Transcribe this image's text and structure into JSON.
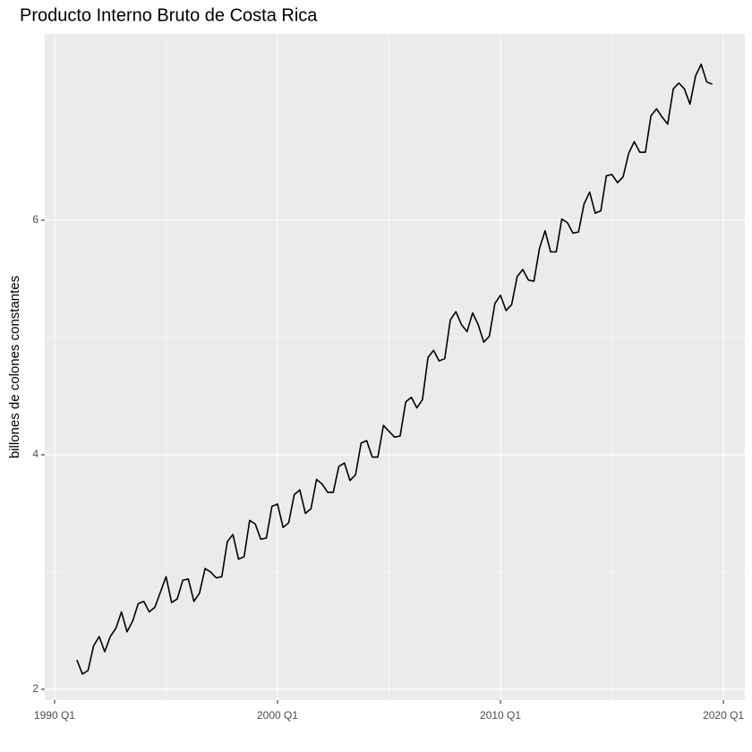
{
  "chart_data": {
    "type": "line",
    "title": "Producto Interno Bruto de Costa Rica",
    "y_label": "billones de colones constantes",
    "x": [
      "1991 Q1",
      "1991 Q2",
      "1991 Q3",
      "1991 Q4",
      "1992 Q1",
      "1992 Q2",
      "1992 Q3",
      "1992 Q4",
      "1993 Q1",
      "1993 Q2",
      "1993 Q3",
      "1993 Q4",
      "1994 Q1",
      "1994 Q2",
      "1994 Q3",
      "1994 Q4",
      "1995 Q1",
      "1995 Q2",
      "1995 Q3",
      "1995 Q4",
      "1996 Q1",
      "1996 Q2",
      "1996 Q3",
      "1996 Q4",
      "1997 Q1",
      "1997 Q2",
      "1997 Q3",
      "1997 Q4",
      "1998 Q1",
      "1998 Q2",
      "1998 Q3",
      "1998 Q4",
      "1999 Q1",
      "1999 Q2",
      "1999 Q3",
      "1999 Q4",
      "2000 Q1",
      "2000 Q2",
      "2000 Q3",
      "2000 Q4",
      "2001 Q1",
      "2001 Q2",
      "2001 Q3",
      "2001 Q4",
      "2002 Q1",
      "2002 Q2",
      "2002 Q3",
      "2002 Q4",
      "2003 Q1",
      "2003 Q2",
      "2003 Q3",
      "2003 Q4",
      "2004 Q1",
      "2004 Q2",
      "2004 Q3",
      "2004 Q4",
      "2005 Q1",
      "2005 Q2",
      "2005 Q3",
      "2005 Q4",
      "2006 Q1",
      "2006 Q2",
      "2006 Q3",
      "2006 Q4",
      "2007 Q1",
      "2007 Q2",
      "2007 Q3",
      "2007 Q4",
      "2008 Q1",
      "2008 Q2",
      "2008 Q3",
      "2008 Q4",
      "2009 Q1",
      "2009 Q2",
      "2009 Q3",
      "2009 Q4",
      "2010 Q1",
      "2010 Q2",
      "2010 Q3",
      "2010 Q4",
      "2011 Q1",
      "2011 Q2",
      "2011 Q3",
      "2011 Q4",
      "2012 Q1",
      "2012 Q2",
      "2012 Q3",
      "2012 Q4",
      "2013 Q1",
      "2013 Q2",
      "2013 Q3",
      "2013 Q4",
      "2014 Q1",
      "2014 Q2",
      "2014 Q3",
      "2014 Q4",
      "2015 Q1",
      "2015 Q2",
      "2015 Q3",
      "2015 Q4",
      "2016 Q1",
      "2016 Q2",
      "2016 Q3",
      "2016 Q4",
      "2017 Q1",
      "2017 Q2",
      "2017 Q3",
      "2017 Q4",
      "2018 Q1",
      "2018 Q2",
      "2018 Q3",
      "2018 Q4",
      "2019 Q1",
      "2019 Q2",
      "2019 Q3"
    ],
    "values": [
      2.25,
      2.13,
      2.16,
      2.37,
      2.45,
      2.32,
      2.45,
      2.52,
      2.66,
      2.49,
      2.58,
      2.73,
      2.75,
      2.66,
      2.7,
      2.83,
      2.96,
      2.74,
      2.77,
      2.93,
      2.94,
      2.75,
      2.82,
      3.03,
      3.0,
      2.95,
      2.96,
      3.26,
      3.32,
      3.11,
      3.13,
      3.44,
      3.41,
      3.28,
      3.29,
      3.56,
      3.58,
      3.38,
      3.42,
      3.66,
      3.7,
      3.5,
      3.54,
      3.79,
      3.75,
      3.68,
      3.68,
      3.9,
      3.93,
      3.78,
      3.83,
      4.1,
      4.12,
      3.98,
      3.98,
      4.25,
      4.2,
      4.15,
      4.16,
      4.45,
      4.49,
      4.4,
      4.47,
      4.83,
      4.89,
      4.8,
      4.82,
      5.15,
      5.22,
      5.11,
      5.05,
      5.21,
      5.11,
      4.96,
      5.01,
      5.29,
      5.36,
      5.23,
      5.28,
      5.52,
      5.58,
      5.49,
      5.48,
      5.76,
      5.91,
      5.73,
      5.73,
      6.01,
      5.98,
      5.89,
      5.9,
      6.14,
      6.24,
      6.06,
      6.08,
      6.38,
      6.39,
      6.32,
      6.37,
      6.57,
      6.67,
      6.58,
      6.58,
      6.89,
      6.95,
      6.88,
      6.82,
      7.12,
      7.17,
      7.12,
      6.99,
      7.23,
      7.33,
      7.18,
      7.16
    ],
    "color": "#000000",
    "xlim": [
      1989.56,
      2020.96
    ],
    "xticks": [
      {
        "value": 1990,
        "label": "1990 Q1"
      },
      {
        "value": 2000,
        "label": "2000 Q1"
      },
      {
        "value": 2010,
        "label": "2010 Q1"
      },
      {
        "value": 2020,
        "label": "2020 Q1"
      }
    ],
    "ylim": [
      1.908,
      7.588
    ],
    "yticks": [
      2,
      4,
      6
    ],
    "grid": true
  }
}
